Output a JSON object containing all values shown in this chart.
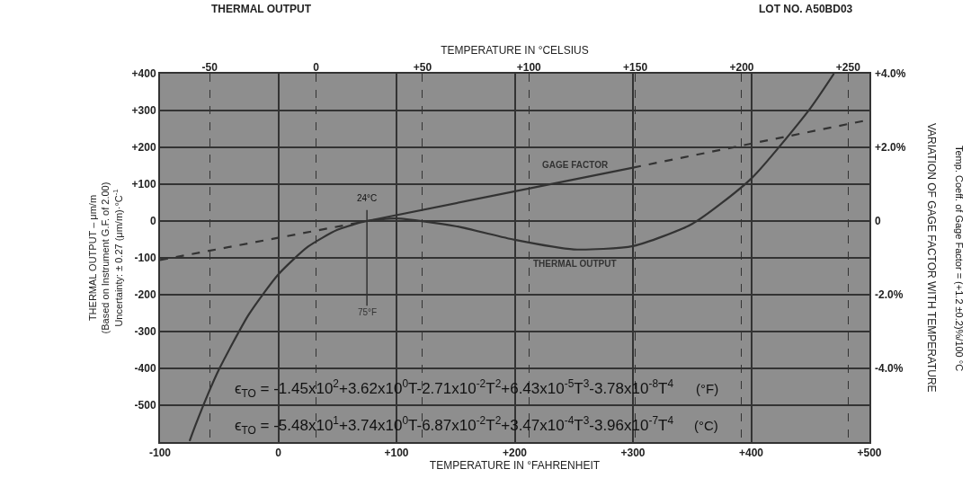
{
  "chart_data": {
    "type": "line",
    "title": "THERMAL OUTPUT",
    "subtitle": "LOT NO. A50BD03",
    "xlabel": "TEMPERATURE IN °FAHRENHEIT",
    "x2label": "TEMPERATURE IN °CELSIUS",
    "ylabel": "THERMAL OUTPUT – μm/m\n(Based on Instrument G.F. of 2.00)\nUncertainty: ± 0.27 (μm/m)·°C$^{-1}$",
    "y2label": "VARIATION OF GAGE FACTOR WITH TEMPERATURE",
    "xlim": [
      -100,
      500
    ],
    "xticks": [
      {
        "value": -100,
        "label": "-100"
      },
      0,
      {
        "value": 100,
        "label": "+100"
      },
      {
        "value": 200,
        "label": "+200"
      },
      {
        "value": 300,
        "label": "+300"
      },
      {
        "value": 400,
        "label": "+400"
      },
      {
        "value": 500,
        "label": "+500"
      }
    ],
    "x2lim": [
      -73.3,
      260
    ],
    "x2ticks": [
      {
        "value": -50,
        "label": "-50"
      },
      0,
      {
        "value": 50,
        "label": "+50"
      },
      {
        "value": 100,
        "label": "+100"
      },
      {
        "value": 150,
        "label": "+150"
      },
      {
        "value": 200,
        "label": "+200"
      },
      {
        "value": 250,
        "label": "+250"
      }
    ],
    "ylim": [
      -600,
      400
    ],
    "yticks": [
      {
        "value": -500,
        "label": "-500"
      },
      {
        "value": -400,
        "label": "-400"
      },
      {
        "value": -300,
        "label": "-300"
      },
      {
        "value": -200,
        "label": "-200"
      },
      {
        "value": -100,
        "label": "-100"
      },
      0,
      {
        "value": 100,
        "label": "+100"
      },
      {
        "value": 200,
        "label": "+200"
      },
      {
        "value": 300,
        "label": "+300"
      },
      {
        "value": 400,
        "label": "+400"
      }
    ],
    "y2lim": [
      -6,
      4
    ],
    "y2ticks": [
      {
        "value": -4,
        "label": "-4.0%"
      },
      {
        "value": -2,
        "label": "-2.0%"
      },
      0,
      {
        "value": 2,
        "label": "+2.0%"
      },
      {
        "value": 4,
        "label": "+4.0%"
      }
    ],
    "grid": true,
    "series": [
      {
        "name": "GAGE FACTOR",
        "color": "#333333",
        "axis": "y2",
        "line_style": "solid",
        "x": [
          75,
          300
        ],
        "values": [
          0,
          1.45
        ]
      },
      {
        "color": "#333333",
        "axis": "y2",
        "line_style": "dashed",
        "x": [
          -100,
          75
        ],
        "values": [
          -1.06,
          0
        ]
      },
      {
        "color": "#333333",
        "axis": "y2",
        "line_style": "dashed",
        "x": [
          300,
          500
        ],
        "values": [
          1.45,
          2.75
        ]
      },
      {
        "name": "THERMAL OUTPUT",
        "color": "#333333",
        "line_style": "solid",
        "x": [
          -75,
          -70,
          -60,
          -50,
          -25,
          0,
          25,
          50,
          75,
          100,
          150,
          200,
          250,
          300,
          350,
          400,
          450,
          470
        ],
        "values": [
          -597,
          -554,
          -474,
          -402,
          -254,
          -145,
          -70,
          -24,
          0,
          7,
          -14,
          -51,
          -77,
          -68,
          -8,
          115,
          306,
          400
        ]
      }
    ],
    "ref_lines": [
      {
        "axis": "x",
        "value": 75,
        "label": "75°F",
        "color": "#333333"
      }
    ],
    "annotations": [
      "24°C",
      "ϵ$_{TO}$ = -1.45x10$^{2}$+3.62x10$^{0}$T-2.71x10$^{-2}$T$^{2}$+6.43x10$^{-5}$T$^{3}$-3.78x10$^{-8}$T$^{4}$",
      "(°F)",
      "ϵ$_{TO}$ = -5.48x10$^{1}$+3.74x10$^{0}$T-6.87x10$^{-2}$T$^{2}$+3.47x10$^{-4}$T$^{3}$-3.96x10$^{-7}$T$^{4}$",
      "(°C)",
      "Temp. Coeff. of Gage Factor = (+1.2 ±0.2)%/100 °C"
    ]
  }
}
